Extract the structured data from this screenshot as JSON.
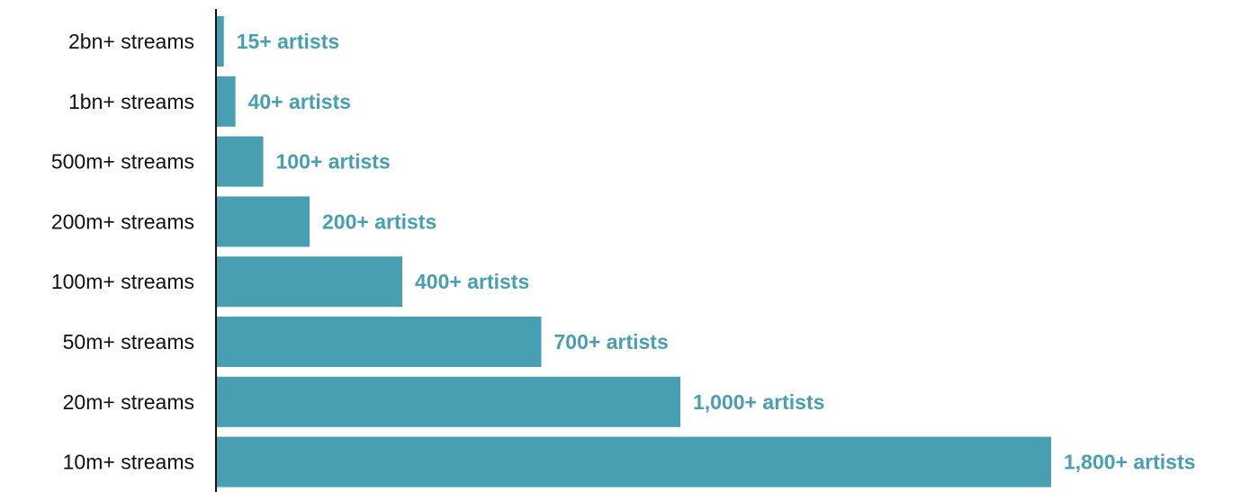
{
  "chart_data": {
    "type": "bar",
    "orientation": "horizontal",
    "categories": [
      "2bn+ streams",
      "1bn+ streams",
      "500m+ streams",
      "200m+ streams",
      "100m+ streams",
      "50m+ streams",
      "20m+ streams",
      "10m+ streams"
    ],
    "values": [
      15,
      40,
      100,
      200,
      400,
      700,
      1000,
      1800
    ],
    "data_labels": [
      "15+ artists",
      "40+ artists",
      "100+ artists",
      "200+ artists",
      "400+ artists",
      "700+ artists",
      "1,000+ artists",
      "1,800+ artists"
    ],
    "xlim": [
      0,
      1800
    ],
    "grid": false,
    "legend": "none",
    "bar_color": "#489fb2",
    "label_color": "#489fb2",
    "axis_color": "#111111"
  }
}
